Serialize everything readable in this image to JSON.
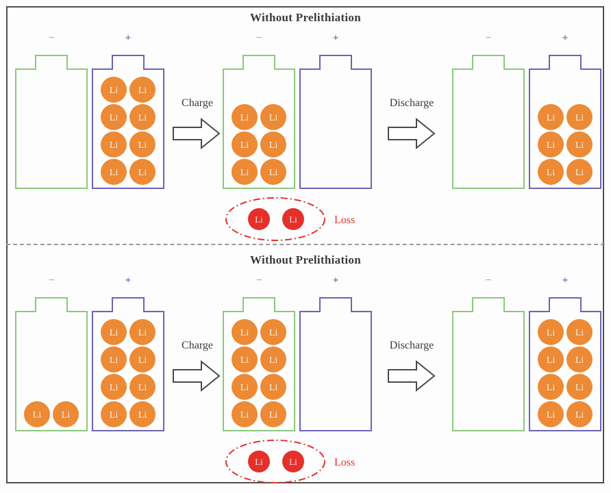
{
  "figure": {
    "rows": [
      {
        "title": "Without Prelithiation",
        "charge_label": "Charge",
        "discharge_label": "Discharge",
        "loss_label": "Loss",
        "loss_li_count": 2,
        "stages": [
          {
            "negative_li": 0,
            "positive_li": 8
          },
          {
            "negative_li": 6,
            "positive_li": 0
          },
          {
            "negative_li": 0,
            "positive_li": 6
          }
        ]
      },
      {
        "title": "Without Prelithiation",
        "charge_label": "Charge",
        "discharge_label": "Discharge",
        "loss_label": "Loss",
        "loss_li_count": 2,
        "stages": [
          {
            "negative_li": 2,
            "positive_li": 8
          },
          {
            "negative_li": 8,
            "positive_li": 0
          },
          {
            "negative_li": 0,
            "positive_li": 8
          }
        ]
      }
    ],
    "labels": {
      "minus": "−",
      "plus": "+",
      "lithium": "Li"
    },
    "colors": {
      "negative_electrode": "#8cc87c",
      "positive_electrode": "#6a63b8",
      "lithium_ion": "#ec8a36",
      "lithium_label": "#fdeedd",
      "loss_red": "#e5302a",
      "loss_li_label": "#ffe9e7",
      "arrow_outline": "#4a4a4a",
      "text": "#3b3b3b",
      "divider": "#999999",
      "frame": "#4f4f4f"
    }
  }
}
